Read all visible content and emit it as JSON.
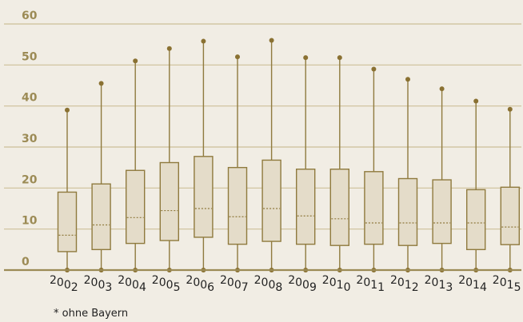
{
  "chart_data": {
    "type": "boxplot",
    "categories": [
      "2002",
      "2003",
      "2004",
      "2005",
      "2006",
      "2007",
      "2008",
      "2009",
      "2010",
      "2011",
      "2012",
      "2013",
      "2014",
      "2015"
    ],
    "boxes": [
      {
        "min": 0,
        "q1": 4.5,
        "median": 8.5,
        "q3": 19,
        "max": 39
      },
      {
        "min": 0,
        "q1": 5,
        "median": 11,
        "q3": 21,
        "max": 45.5
      },
      {
        "min": 0,
        "q1": 6.5,
        "median": 12.8,
        "q3": 24.3,
        "max": 51
      },
      {
        "min": 0,
        "q1": 7.2,
        "median": 14.5,
        "q3": 26.2,
        "max": 54
      },
      {
        "min": 0,
        "q1": 8,
        "median": 15,
        "q3": 27.7,
        "max": 55.8
      },
      {
        "min": 0,
        "q1": 6.3,
        "median": 13,
        "q3": 25,
        "max": 52
      },
      {
        "min": 0,
        "q1": 7,
        "median": 15,
        "q3": 26.8,
        "max": 56
      },
      {
        "min": 0,
        "q1": 6.3,
        "median": 13.2,
        "q3": 24.6,
        "max": 51.8
      },
      {
        "min": 0,
        "q1": 6,
        "median": 12.5,
        "q3": 24.6,
        "max": 51.8
      },
      {
        "min": 0,
        "q1": 6.3,
        "median": 11.5,
        "q3": 24,
        "max": 49
      },
      {
        "min": 0,
        "q1": 6,
        "median": 11.5,
        "q3": 22.3,
        "max": 46.5
      },
      {
        "min": 0,
        "q1": 6.5,
        "median": 11.5,
        "q3": 22,
        "max": 44.2
      },
      {
        "min": 0,
        "q1": 5,
        "median": 11.5,
        "q3": 19.6,
        "max": 41.2
      },
      {
        "min": 0,
        "q1": 6.2,
        "median": 10.5,
        "q3": 20.2,
        "max": 39.2
      }
    ],
    "yticks": [
      0,
      10,
      20,
      30,
      40,
      50,
      60
    ],
    "ylim": [
      0,
      60
    ],
    "grid": true,
    "colors": {
      "axis": "#9c8b55",
      "grid": "#cdbf98",
      "box_fill": "#e4dcc9",
      "box_stroke": "#8f7a3e",
      "whisker": "#8f7a3e",
      "median": "#8f7a3e",
      "dot": "#8a7132",
      "background": "#f1ede4"
    }
  },
  "footnote": "* ohne Bayern"
}
